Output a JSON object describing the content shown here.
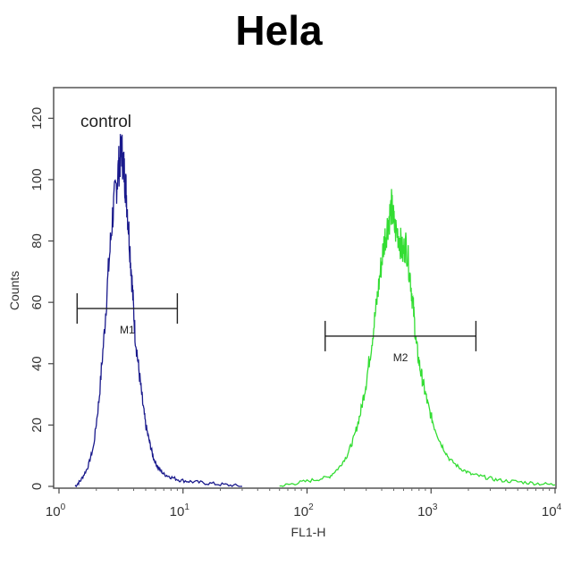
{
  "chart_data": {
    "type": "line",
    "title": "Hela",
    "xlabel": "FL1-H",
    "ylabel": "Counts",
    "x_scale": "log",
    "xlim": [
      1,
      10000
    ],
    "ylim": [
      0,
      130
    ],
    "x_ticks": [
      {
        "base": "10",
        "exp": "0",
        "value": 1
      },
      {
        "base": "10",
        "exp": "1",
        "value": 10
      },
      {
        "base": "10",
        "exp": "2",
        "value": 100
      },
      {
        "base": "10",
        "exp": "3",
        "value": 1000
      },
      {
        "base": "10",
        "exp": "4",
        "value": 10000
      }
    ],
    "y_ticks": [
      "0",
      "20",
      "40",
      "60",
      "80",
      "100",
      "120"
    ],
    "annotation": "control",
    "series": [
      {
        "color": "#1a1a8c",
        "x": [
          1.35,
          1.5,
          1.7,
          1.9,
          2.1,
          2.3,
          2.5,
          2.7,
          2.9,
          3.05,
          3.2,
          3.35,
          3.5,
          3.7,
          3.9,
          4.1,
          4.4,
          4.7,
          5.0,
          5.4,
          5.8,
          6.3,
          7.0,
          8.0,
          9.5,
          12,
          16,
          22,
          30
        ],
        "y": [
          0,
          2,
          6,
          13,
          28,
          48,
          70,
          88,
          98,
          105,
          110,
          103,
          95,
          80,
          65,
          50,
          38,
          28,
          20,
          14,
          9,
          6,
          4,
          3,
          2,
          1.5,
          1,
          0.5,
          0
        ]
      },
      {
        "color": "#33dd33",
        "x": [
          60,
          80,
          110,
          150,
          180,
          210,
          240,
          270,
          300,
          330,
          360,
          390,
          420,
          450,
          480,
          510,
          550,
          590,
          630,
          680,
          720,
          760,
          820,
          880,
          950,
          1050,
          1200,
          1400,
          1700,
          2100,
          2700,
          3500,
          5000,
          7000,
          10000
        ],
        "y": [
          0,
          1,
          2,
          3,
          6,
          10,
          16,
          24,
          34,
          46,
          58,
          70,
          80,
          86,
          91,
          84,
          82,
          76,
          79,
          68,
          58,
          46,
          38,
          32,
          26,
          20,
          14,
          9,
          6,
          4,
          3,
          2,
          1.5,
          1,
          0.5
        ]
      }
    ],
    "markers": [
      {
        "label": "M1",
        "x_start": 1.4,
        "x_end": 9.0,
        "y": 58
      },
      {
        "label": "M2",
        "x_start": 140,
        "x_end": 2300,
        "y": 49
      }
    ]
  }
}
